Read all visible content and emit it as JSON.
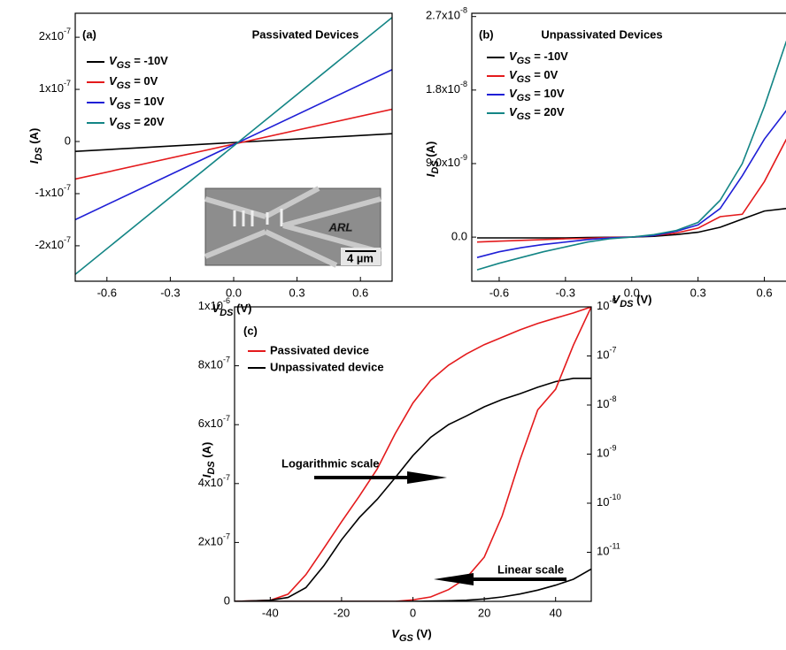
{
  "chart_data": [
    {
      "type": "line",
      "panel_label": "(a)",
      "title": "Passivated Devices",
      "xlabel": "VDS (V)",
      "ylabel": "IDS (A)",
      "x": [
        -0.75,
        0.75
      ],
      "series": [
        {
          "name": "VGS = -10V",
          "color": "#000000",
          "values": [
            -1.9e-08,
            1.5e-08
          ]
        },
        {
          "name": "VGS = 0V",
          "color": "#e41a1c",
          "values": [
            -7.2e-08,
            6.2e-08
          ]
        },
        {
          "name": "VGS = 10V",
          "color": "#1f1fd6",
          "values": [
            -1.5e-07,
            1.38e-07
          ]
        },
        {
          "name": "VGS = 20V",
          "color": "#138585",
          "values": [
            -2.55e-07,
            2.38e-07
          ]
        }
      ],
      "xlim": [
        -0.75,
        0.75
      ],
      "xticks": [
        -0.6,
        -0.3,
        {
          "value": 0,
          "label": "0.0"
        },
        0.3,
        0.6
      ],
      "ylim": [
        -2.68e-07,
        2.46e-07
      ],
      "yticks": [
        {
          "value": -2e-07,
          "label": "-2x10-7"
        },
        {
          "value": -1e-07,
          "label": "-1x10-7"
        },
        0,
        {
          "value": 1e-07,
          "label": "1x10-7"
        },
        {
          "value": 2e-07,
          "label": "2x10-7"
        }
      ],
      "legend": "upper left",
      "inset": {
        "text": "ARL",
        "scale_bar": "4 µm"
      }
    },
    {
      "type": "line",
      "panel_label": "(b)",
      "title": "Unpassivated Devices",
      "xlabel": "VDS (V)",
      "ylabel": "IDS (A)",
      "x": [
        -0.7,
        -0.6,
        -0.5,
        -0.4,
        -0.3,
        -0.2,
        -0.1,
        0,
        0.1,
        0.2,
        0.3,
        0.4,
        0.5,
        0.6,
        0.7
      ],
      "series": [
        {
          "name": "VGS = -10V",
          "color": "#000000",
          "values": [
            -1e-10,
            -1e-10,
            -1e-10,
            -1e-10,
            -1e-10,
            -5e-11,
            -2e-11,
            0,
            1e-10,
            3e-10,
            6e-10,
            1.2e-09,
            2.2e-09,
            3.2e-09,
            3.5e-09
          ]
        },
        {
          "name": "VGS = 0V",
          "color": "#e41a1c",
          "values": [
            -6e-10,
            -5e-10,
            -4e-10,
            -3e-10,
            -2e-10,
            -1.5e-10,
            -5e-11,
            0,
            2e-10,
            5e-10,
            1.1e-09,
            2.5e-09,
            2.8e-09,
            6.8e-09,
            1.2e-08
          ]
        },
        {
          "name": "VGS = 10V",
          "color": "#1f1fd6",
          "values": [
            -2.5e-09,
            -1.8e-09,
            -1.3e-09,
            -9e-10,
            -6e-10,
            -3e-10,
            -1e-10,
            0,
            2e-10,
            7e-10,
            1.5e-09,
            3.5e-09,
            7.5e-09,
            1.2e-08,
            1.55e-08
          ]
        },
        {
          "name": "VGS = 20V",
          "color": "#138585",
          "values": [
            -4e-09,
            -3.2e-09,
            -2.5e-09,
            -1.8e-09,
            -1.2e-09,
            -6e-10,
            -2e-10,
            0,
            3e-10,
            8e-10,
            1.8e-09,
            4.5e-09,
            9e-09,
            1.6e-08,
            2.4e-08
          ]
        }
      ],
      "xlim": [
        -0.724,
        0.75
      ],
      "xticks": [
        -0.6,
        -0.3,
        {
          "value": 0,
          "label": "0.0"
        },
        0.3,
        0.6
      ],
      "ylim": [
        -5.4e-09,
        2.74e-08
      ],
      "yticks": [
        {
          "value": 0,
          "label": "0.0"
        },
        {
          "value": 9e-09,
          "label": "9.0x10-9"
        },
        {
          "value": 1.8e-08,
          "label": "1.8x10-8"
        },
        {
          "value": 2.7e-08,
          "label": "2.7x10-8"
        }
      ],
      "legend": "upper left"
    },
    {
      "type": "line",
      "panel_label": "(c)",
      "xlabel": "VGS (V)",
      "ylabel": "IDS (A)",
      "x": [
        -50,
        -40,
        -35,
        -30,
        -25,
        -20,
        -15,
        -10,
        -5,
        0,
        5,
        10,
        15,
        20,
        25,
        30,
        35,
        40,
        45,
        50
      ],
      "series": [
        {
          "name": "Passivated device",
          "color": "#e41a1c",
          "axis": "y2",
          "values": [
            1e-12,
            1.05e-12,
            1.4e-12,
            3.5e-12,
            1.2e-11,
            4.2e-11,
            1.4e-10,
            5e-10,
            2.6e-09,
            1.1e-08,
            3.2e-08,
            6.5e-08,
            1.1e-07,
            1.7e-07,
            2.4e-07,
            3.4e-07,
            4.6e-07,
            5.9e-07,
            7.5e-07,
            1e-06
          ]
        },
        {
          "name": "Unpassivated device",
          "color": "#000000",
          "axis": "y2",
          "values": [
            1e-12,
            1.05e-12,
            1.2e-12,
            1.9e-12,
            5.3e-12,
            1.8e-11,
            5.1e-11,
            1.2e-10,
            3.3e-10,
            9.3e-10,
            2.2e-09,
            4e-09,
            6e-09,
            9.2e-09,
            1.3e-08,
            1.7e-08,
            2.3e-08,
            3e-08,
            3.5e-08,
            3.5e-08
          ]
        },
        {
          "color": "#e41a1c",
          "values": [
            0,
            0,
            0,
            0,
            0,
            0,
            0,
            0,
            0,
            5e-09,
            1.5e-08,
            4e-08,
            8e-08,
            1.5e-07,
            2.9e-07,
            4.8e-07,
            6.5e-07,
            7.2e-07,
            8.7e-07,
            1e-06
          ]
        },
        {
          "color": "#000000",
          "values": [
            0,
            0,
            0,
            0,
            0,
            0,
            0,
            0,
            0,
            0,
            1e-09,
            2e-09,
            4e-09,
            8e-09,
            1.5e-08,
            2.5e-08,
            3.8e-08,
            5.5e-08,
            7.5e-08,
            1.1e-07
          ]
        }
      ],
      "xlim": [
        -50,
        50
      ],
      "xticks": [
        -40,
        -20,
        0,
        20,
        40
      ],
      "ylim": [
        0,
        1e-06
      ],
      "yticks": [
        0,
        {
          "value": 2e-07,
          "label": "2x10-7"
        },
        {
          "value": 4e-07,
          "label": "4x10-7"
        },
        {
          "value": 6e-07,
          "label": "6x10-7"
        },
        {
          "value": 8e-07,
          "label": "8x10-7"
        },
        {
          "value": 1e-06,
          "label": "1x10-6"
        }
      ],
      "y2lim": [
        1e-12,
        1e-06
      ],
      "y2log": true,
      "y2ticks": [
        {
          "value": 1e-11,
          "label": "10-11"
        },
        {
          "value": 1e-10,
          "label": "10-10"
        },
        {
          "value": 1e-09,
          "label": "10-9"
        },
        {
          "value": 1e-08,
          "label": "10-8"
        },
        {
          "value": 1e-07,
          "label": "10-7"
        },
        {
          "value": 1e-06,
          "label": "10-6"
        }
      ],
      "legend": "upper left",
      "annotations": [
        "Logarithmic scale",
        "Linear scale"
      ]
    }
  ]
}
